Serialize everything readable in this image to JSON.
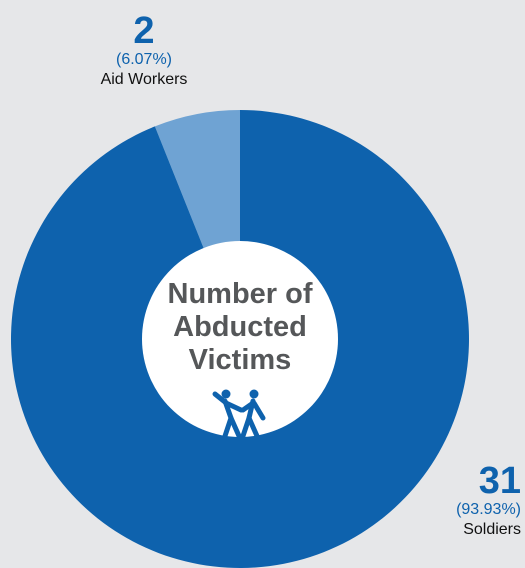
{
  "chart_data": {
    "type": "pie",
    "style": "donut",
    "center_label": "Number of\nAbducted\nVictims",
    "slices": [
      {
        "label": "Aid Workers",
        "value": 2,
        "percent_label": "(6.07%)",
        "color": "#6fa3d3"
      },
      {
        "label": "Soldiers",
        "value": 31,
        "percent_label": "(93.93%)",
        "color": "#0e62ad"
      }
    ]
  },
  "icons": {
    "center": "people-fleeing-icon"
  },
  "colors": {
    "background": "#e6e7e9",
    "center_circle": "#ffffff",
    "accent": "#0e62ad",
    "title_text": "#555759"
  }
}
